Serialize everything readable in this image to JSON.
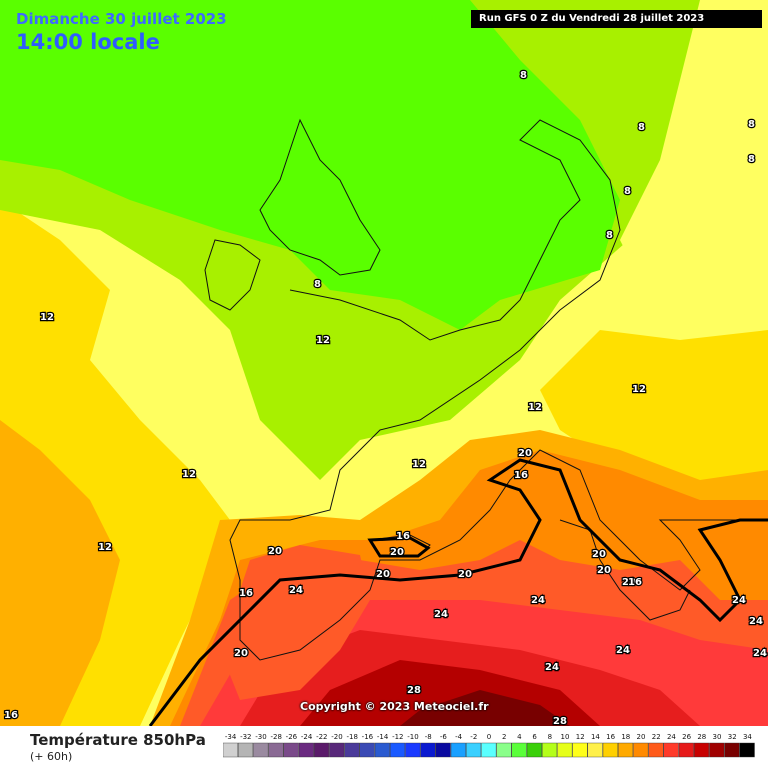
{
  "header": {
    "date_title": "Dimanche 30 juillet 2023",
    "time_title": "14:00 locale",
    "run_label": "Run GFS 0 Z du Vendredi 28 juillet 2023"
  },
  "copyright": "Copyright © 2023 Meteociel.fr",
  "footer": {
    "parameter_title": "Température 850hPa",
    "lead_time": "(+ 60h)"
  },
  "legend": {
    "ticks": [
      "-34",
      "-32",
      "-30",
      "-28",
      "-26",
      "-24",
      "-22",
      "-20",
      "-18",
      "-16",
      "-14",
      "-12",
      "-10",
      "-8",
      "-6",
      "-4",
      "-2",
      "0",
      "2",
      "4",
      "6",
      "8",
      "10",
      "12",
      "14",
      "16",
      "18",
      "20",
      "22",
      "24",
      "26",
      "28",
      "30",
      "32",
      "34"
    ],
    "colors": [
      "#d0d0d0",
      "#b4b4b4",
      "#9a8aa0",
      "#8a6a94",
      "#7a4a8a",
      "#6a2a80",
      "#5a1a6a",
      "#58287a",
      "#4a3a9a",
      "#3a4ab4",
      "#2a5ad0",
      "#1a5aff",
      "#1a3aff",
      "#0a1ad0",
      "#0a0aa0",
      "#1aa0ff",
      "#3ad0ff",
      "#5affff",
      "#8aff8a",
      "#5aff3a",
      "#3ad00a",
      "#b4ff1a",
      "#e6ff1a",
      "#ffff1a",
      "#fff04a",
      "#ffd000",
      "#ffaa00",
      "#ff8a00",
      "#ff5a1a",
      "#ff3a2a",
      "#e61a1a",
      "#c80000",
      "#a00000",
      "#780000",
      "#000000"
    ]
  },
  "colors": {
    "iso8": "#5aff00",
    "iso10": "#a8f000",
    "iso12": "#ffff60",
    "iso14": "#ffe000",
    "iso16": "#ffb000",
    "iso18": "#ff8a00",
    "iso20": "#ff5a28",
    "iso22": "#ff3a3a",
    "iso24": "#e61e1e",
    "iso26": "#b40000",
    "iso28": "#780000"
  },
  "map_labels": [
    "8",
    "8",
    "8",
    "8",
    "8",
    "8",
    "8",
    "12",
    "12",
    "12",
    "12",
    "12",
    "12",
    "12",
    "16",
    "16",
    "16",
    "16",
    "20",
    "20",
    "20",
    "20",
    "20",
    "20",
    "20",
    "20",
    "20",
    "24",
    "24",
    "24",
    "24",
    "24",
    "24",
    "24",
    "24",
    "28",
    "28",
    "16"
  ]
}
